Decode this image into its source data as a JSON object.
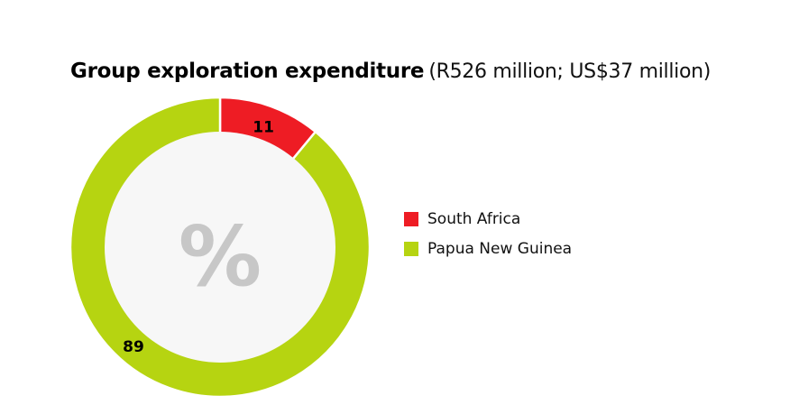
{
  "title": {
    "main": "Group exploration expenditure",
    "sub": "(R526 million; US$37 million)"
  },
  "center_symbol": "%",
  "colors": {
    "south_africa": "#ee1c24",
    "papua_new_guinea": "#b6d411",
    "donut_hole": "#f7f7f7",
    "center_symbol": "#c7c7c7"
  },
  "chart_data": {
    "type": "pie",
    "title": "Group exploration expenditure",
    "subtitle": "(R526 million; US$37 million)",
    "donut": true,
    "unit": "%",
    "slices": [
      {
        "name": "South Africa",
        "value": 11,
        "label": "11",
        "color": "#ee1c24"
      },
      {
        "name": "Papua New Guinea",
        "value": 89,
        "label": "89",
        "color": "#b6d411"
      }
    ],
    "legend_position": "right"
  },
  "legend": {
    "items": [
      {
        "label": "South Africa",
        "color": "#ee1c24"
      },
      {
        "label": "Papua New Guinea",
        "color": "#b6d411"
      }
    ]
  }
}
